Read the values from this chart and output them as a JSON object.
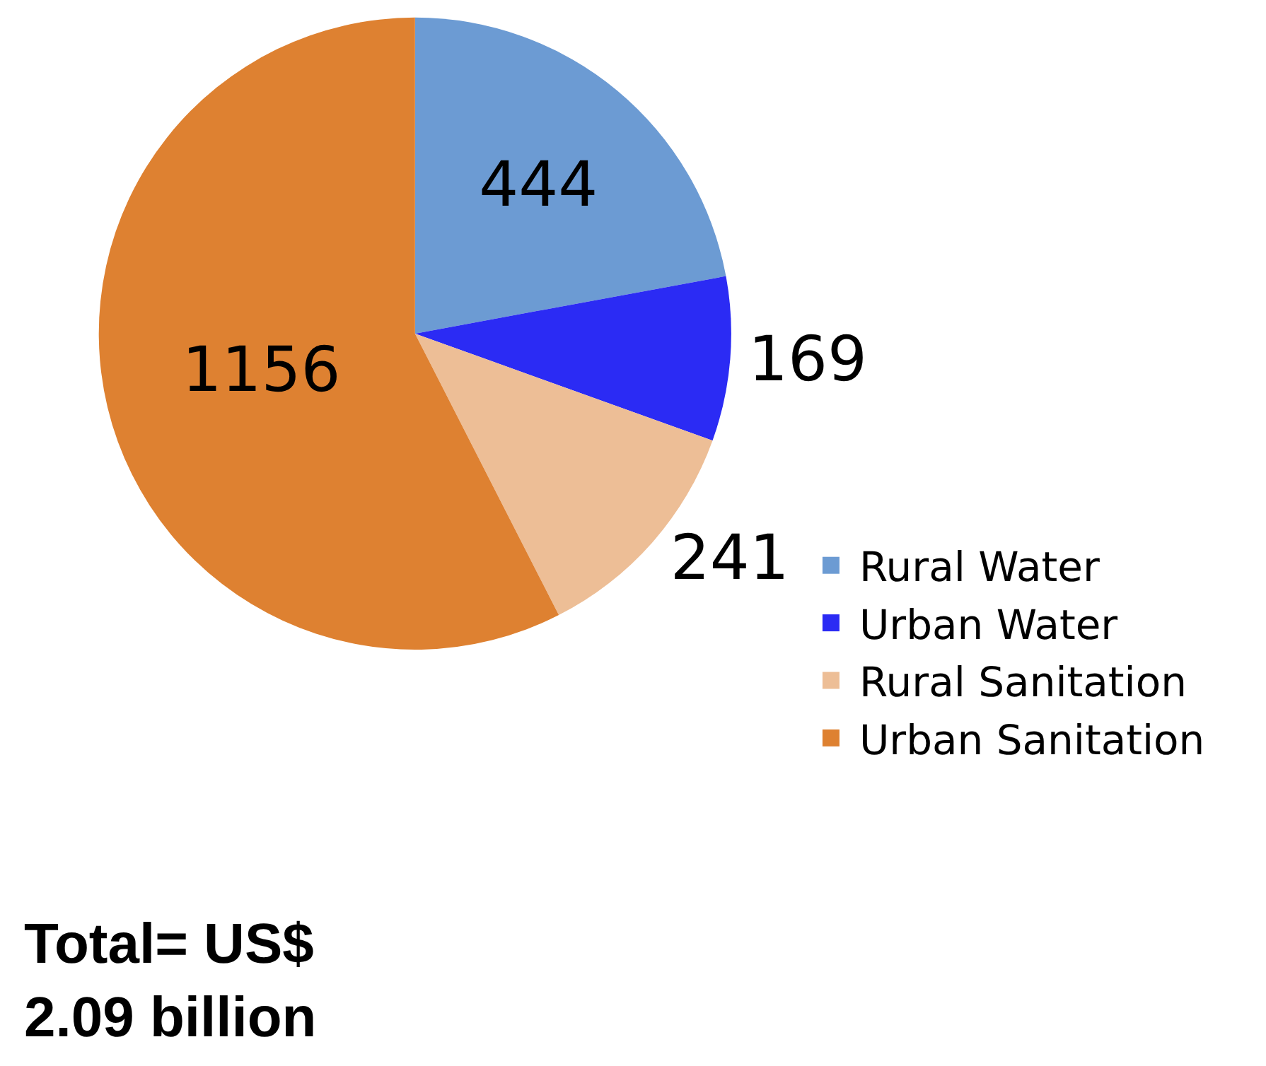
{
  "chart_data": {
    "type": "pie",
    "categories": [
      "Rural Water",
      "Urban Water",
      "Rural Sanitation",
      "Urban Sanitation"
    ],
    "values": [
      444,
      169,
      241,
      1156
    ],
    "colors": [
      "#6c9bd3",
      "#2b2bf4",
      "#edbe96",
      "#de8131"
    ],
    "data_labels": true,
    "legend": "right",
    "annotations": [
      "Total= US$\n2.09 billion"
    ]
  }
}
